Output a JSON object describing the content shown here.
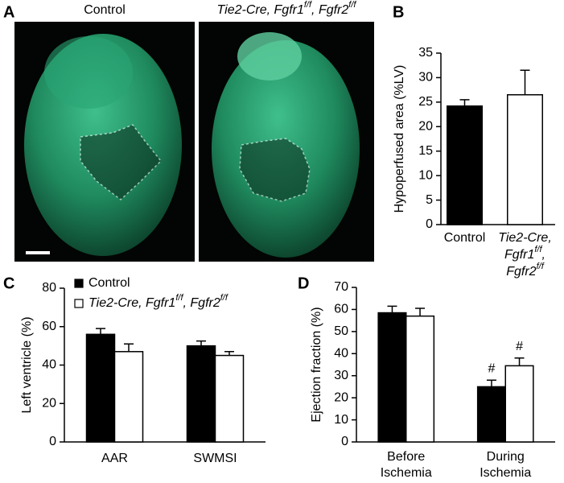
{
  "panel_a": {
    "panel_label": "A",
    "images": [
      {
        "label": "Control"
      },
      {
        "label": [
          [
            "Tie2-Cre, Fgfr1",
            "f/f",
            ", Fgfr2",
            "f/f"
          ]
        ]
      }
    ]
  },
  "chart_data": [
    {
      "type": "bar",
      "panel_label": "B",
      "y_label": "Hypoperfused area (%LV)",
      "categories": [
        "Control",
        [
          "Tie2-Cre,",
          [
            "Fgfr1",
            "f/f",
            ","
          ],
          [
            "Fgfr2",
            "f/f"
          ]
        ]
      ],
      "italic_categories": [
        false,
        true
      ],
      "values": [
        24.2,
        26.5
      ],
      "errors": [
        1.3,
        5.0
      ],
      "colors": [
        "#000000",
        "#ffffff"
      ],
      "ylim": [
        0,
        35
      ],
      "yticks": [
        0,
        5,
        10,
        15,
        20,
        25,
        30,
        35
      ]
    },
    {
      "type": "grouped-bar",
      "panel_label": "C",
      "y_label": "Left ventricle (%)",
      "categories": [
        "AAR",
        "SWMSI"
      ],
      "series": [
        {
          "name": "Control",
          "color": "#000000",
          "values": [
            56,
            50
          ],
          "errors": [
            3,
            2.5
          ]
        },
        {
          "name": [
            [
              "Tie2-Cre, Fgfr1",
              "f/f",
              ", Fgfr2",
              "f/f"
            ]
          ],
          "italic": true,
          "color": "#ffffff",
          "values": [
            47,
            45
          ],
          "errors": [
            4,
            2
          ]
        }
      ],
      "legend": "top-left",
      "ylim": [
        0,
        80
      ],
      "yticks": [
        0,
        20,
        40,
        60,
        80
      ]
    },
    {
      "type": "grouped-bar",
      "panel_label": "D",
      "y_label": "Ejection fraction (%)",
      "categories": [
        [
          "Before",
          "Ischemia"
        ],
        [
          "During",
          "Ischemia"
        ]
      ],
      "series": [
        {
          "color": "#000000",
          "values": [
            58.5,
            25
          ],
          "errors": [
            3,
            3
          ],
          "markers": [
            null,
            "#"
          ]
        },
        {
          "color": "#ffffff",
          "values": [
            57,
            34.5
          ],
          "errors": [
            3.5,
            3.5
          ],
          "markers": [
            null,
            "#"
          ]
        }
      ],
      "ylim": [
        0,
        70
      ],
      "yticks": [
        0,
        10,
        20,
        30,
        40,
        50,
        60,
        70
      ]
    }
  ]
}
